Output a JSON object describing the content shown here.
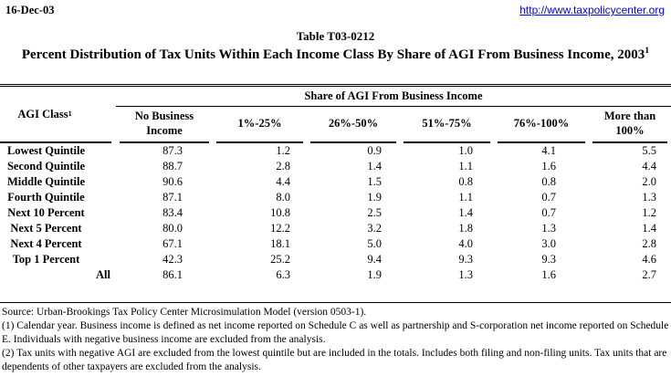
{
  "page": {
    "date": "16-Dec-03",
    "url": "http://www.taxpolicycenter.org",
    "table_number": "Table T03-0212",
    "title": "Percent Distribution of Tax Units Within Each Income Class By Share of AGI From Business Income, 2003",
    "title_footnote": "1"
  },
  "table": {
    "span_header": "Share of AGI From Business Income",
    "stub_header": "AGI Class",
    "stub_footnote": "1",
    "columns": [
      "No Business Income",
      "1%-25%",
      "26%-50%",
      "51%-75%",
      "76%-100%",
      "More than 100%"
    ],
    "rows": [
      {
        "label": "Lowest Quintile",
        "values": [
          "87.3",
          "1.2",
          "0.9",
          "1.0",
          "4.1",
          "5.5"
        ]
      },
      {
        "label": "Second Quintile",
        "values": [
          "88.7",
          "2.8",
          "1.4",
          "1.1",
          "1.6",
          "4.4"
        ]
      },
      {
        "label": "Middle Quintile",
        "values": [
          "90.6",
          "4.4",
          "1.5",
          "0.8",
          "0.8",
          "2.0"
        ]
      },
      {
        "label": "Fourth Quintile",
        "values": [
          "87.1",
          "8.0",
          "1.9",
          "1.1",
          "0.7",
          "1.3"
        ]
      },
      {
        "label": "Next 10 Percent",
        "values": [
          "83.4",
          "10.8",
          "2.5",
          "1.4",
          "0.7",
          "1.2"
        ]
      },
      {
        "label": "Next 5 Percent",
        "values": [
          "80.0",
          "12.2",
          "3.2",
          "1.8",
          "1.3",
          "1.4"
        ]
      },
      {
        "label": "Next 4 Percent",
        "values": [
          "67.1",
          "18.1",
          "5.0",
          "4.0",
          "3.0",
          "2.8"
        ]
      },
      {
        "label": "Top 1 Percent",
        "values": [
          "42.3",
          "25.2",
          "9.4",
          "9.3",
          "9.3",
          "4.6"
        ]
      },
      {
        "label": "All",
        "values": [
          "86.1",
          "6.3",
          "1.9",
          "1.3",
          "1.6",
          "2.7"
        ]
      }
    ]
  },
  "footer": {
    "source": "Source: Urban-Brookings Tax Policy Center Microsimulation Model (version 0503-1).",
    "note1": "(1) Calendar year.  Business income is defined as net income reported on Schedule C as well as partnership and S-corporation net income reported on Schedule E. Individuals with negative business income are excluded from the analysis.",
    "note2": "(2) Tax units with negative AGI are excluded from the lowest quintile but are included in the totals. Includes both filing and non-filing units. Tax units that are dependents of other taxpayers are excluded from the analysis."
  },
  "colors": {
    "link": "#0000EE",
    "text": "#000000",
    "rule": "#000000"
  }
}
